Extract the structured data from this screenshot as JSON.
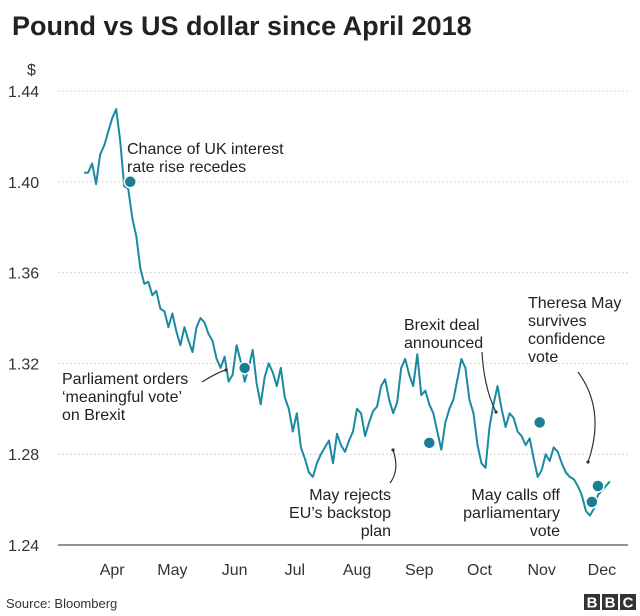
{
  "chart_data": {
    "type": "line",
    "title": "Pound vs US dollar since April 2018",
    "ylabel": "$",
    "ylim": [
      1.24,
      1.44
    ],
    "yticks": [
      "1.44",
      "1.40",
      "1.36",
      "1.32",
      "1.28",
      "1.24"
    ],
    "yticks_values": [
      1.44,
      1.4,
      1.36,
      1.32,
      1.28,
      1.24
    ],
    "categories": [
      "Apr",
      "May",
      "Jun",
      "Jul",
      "Aug",
      "Sep",
      "Oct",
      "Nov",
      "Dec"
    ],
    "grid": true,
    "legend": "none",
    "line_color": "#1a8aa0",
    "x": [
      "2018-04-01",
      "2018-04-03",
      "2018-04-05",
      "2018-04-07",
      "2018-04-09",
      "2018-04-11",
      "2018-04-13",
      "2018-04-15",
      "2018-04-17",
      "2018-04-19",
      "2018-04-21",
      "2018-04-23",
      "2018-04-25",
      "2018-04-27",
      "2018-04-29",
      "2018-05-01",
      "2018-05-03",
      "2018-05-05",
      "2018-05-07",
      "2018-05-09",
      "2018-05-11",
      "2018-05-13",
      "2018-05-15",
      "2018-05-17",
      "2018-05-19",
      "2018-05-21",
      "2018-05-23",
      "2018-05-25",
      "2018-05-27",
      "2018-05-29",
      "2018-05-31",
      "2018-06-02",
      "2018-06-04",
      "2018-06-06",
      "2018-06-08",
      "2018-06-10",
      "2018-06-12",
      "2018-06-14",
      "2018-06-16",
      "2018-06-18",
      "2018-06-20",
      "2018-06-22",
      "2018-06-24",
      "2018-06-26",
      "2018-06-28",
      "2018-06-30",
      "2018-07-02",
      "2018-07-04",
      "2018-07-06",
      "2018-07-08",
      "2018-07-10",
      "2018-07-12",
      "2018-07-14",
      "2018-07-16",
      "2018-07-18",
      "2018-07-20",
      "2018-07-22",
      "2018-07-24",
      "2018-07-26",
      "2018-07-28",
      "2018-07-30",
      "2018-08-01",
      "2018-08-03",
      "2018-08-05",
      "2018-08-07",
      "2018-08-09",
      "2018-08-11",
      "2018-08-13",
      "2018-08-15",
      "2018-08-17",
      "2018-08-19",
      "2018-08-21",
      "2018-08-23",
      "2018-08-25",
      "2018-08-27",
      "2018-08-29",
      "2018-08-31",
      "2018-09-02",
      "2018-09-04",
      "2018-09-06",
      "2018-09-08",
      "2018-09-10",
      "2018-09-12",
      "2018-09-14",
      "2018-09-16",
      "2018-09-18",
      "2018-09-20",
      "2018-09-22",
      "2018-09-24",
      "2018-09-26",
      "2018-09-28",
      "2018-09-30",
      "2018-10-02",
      "2018-10-04",
      "2018-10-06",
      "2018-10-08",
      "2018-10-10",
      "2018-10-12",
      "2018-10-14",
      "2018-10-16",
      "2018-10-18",
      "2018-10-20",
      "2018-10-22",
      "2018-10-24",
      "2018-10-26",
      "2018-10-28",
      "2018-10-30",
      "2018-11-01",
      "2018-11-03",
      "2018-11-05",
      "2018-11-07",
      "2018-11-09",
      "2018-11-11",
      "2018-11-13",
      "2018-11-15",
      "2018-11-17",
      "2018-11-19",
      "2018-11-21",
      "2018-11-23",
      "2018-11-25",
      "2018-11-27",
      "2018-11-29",
      "2018-12-01",
      "2018-12-03",
      "2018-12-05",
      "2018-12-07",
      "2018-12-09",
      "2018-12-11",
      "2018-12-13",
      "2018-12-15",
      "2018-12-17",
      "2018-12-19"
    ],
    "values": [
      1.404,
      1.404,
      1.408,
      1.399,
      1.412,
      1.416,
      1.422,
      1.428,
      1.432,
      1.418,
      1.398,
      1.397,
      1.384,
      1.376,
      1.362,
      1.355,
      1.356,
      1.35,
      1.352,
      1.344,
      1.343,
      1.336,
      1.342,
      1.334,
      1.328,
      1.336,
      1.33,
      1.325,
      1.336,
      1.34,
      1.338,
      1.333,
      1.33,
      1.322,
      1.318,
      1.323,
      1.312,
      1.315,
      1.328,
      1.321,
      1.312,
      1.318,
      1.326,
      1.311,
      1.302,
      1.314,
      1.32,
      1.316,
      1.31,
      1.318,
      1.305,
      1.3,
      1.29,
      1.298,
      1.283,
      1.278,
      1.272,
      1.27,
      1.276,
      1.28,
      1.283,
      1.286,
      1.276,
      1.289,
      1.284,
      1.281,
      1.286,
      1.29,
      1.3,
      1.298,
      1.288,
      1.294,
      1.299,
      1.301,
      1.31,
      1.313,
      1.304,
      1.298,
      1.303,
      1.318,
      1.322,
      1.315,
      1.31,
      1.324,
      1.306,
      1.308,
      1.302,
      1.298,
      1.29,
      1.282,
      1.294,
      1.3,
      1.304,
      1.313,
      1.322,
      1.318,
      1.304,
      1.298,
      1.284,
      1.276,
      1.274,
      1.292,
      1.302,
      1.31,
      1.3,
      1.292,
      1.298,
      1.296,
      1.29,
      1.288,
      1.284,
      1.287,
      1.278,
      1.27,
      1.273,
      1.28,
      1.277,
      1.283,
      1.281,
      1.276,
      1.272,
      1.27,
      1.269,
      1.266,
      1.262,
      1.255,
      1.253,
      1.256,
      1.262,
      1.264,
      1.266,
      1.268
    ],
    "annotations": [
      {
        "lines": [
          "Chance of UK interest",
          "rate rise recedes"
        ],
        "date": "2018-04-24",
        "value": 1.4
      },
      {
        "lines": [
          "Parliament orders",
          "‘meaningful vote’",
          "on Brexit"
        ],
        "date": "2018-06-20",
        "value": 1.318
      },
      {
        "lines": [
          "May rejects",
          "EU’s backstop",
          "plan"
        ],
        "date": "2018-09-20",
        "value": 1.285
      },
      {
        "lines": [
          "Brexit deal",
          "announced"
        ],
        "date": "2018-11-14",
        "value": 1.294
      },
      {
        "lines": [
          "May calls off",
          "parliamentary",
          "vote"
        ],
        "date": "2018-12-10",
        "value": 1.259
      },
      {
        "lines": [
          "Theresa May",
          "survives",
          "confidence",
          "vote"
        ],
        "date": "2018-12-13",
        "value": 1.266
      }
    ]
  },
  "footer": {
    "source": "Source: Bloomberg",
    "brand": [
      "B",
      "B",
      "C"
    ]
  }
}
